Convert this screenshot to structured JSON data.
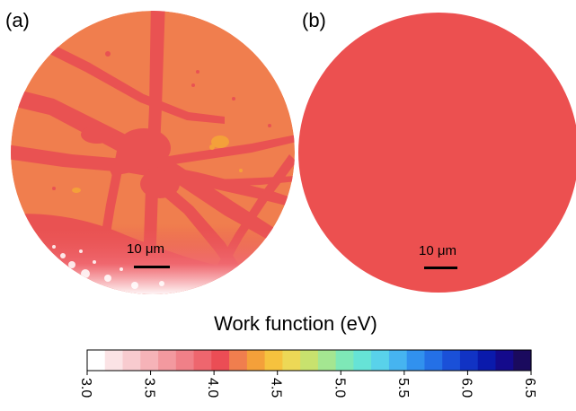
{
  "panels": [
    {
      "label": "(a)",
      "scale_bar": "10 μm",
      "base_color": "#F07E4E",
      "feature_color": "#E95252",
      "highlight_color": "#F4A03A"
    },
    {
      "label": "(b)",
      "scale_bar": "10 μm",
      "base_color": "#EC5050"
    }
  ],
  "colorbar": {
    "title": "Work function (eV)",
    "min": 3.0,
    "max": 6.5,
    "ticks": [
      "3.0",
      "3.5",
      "4.0",
      "4.5",
      "5.0",
      "5.5",
      "6.0",
      "6.5"
    ],
    "colors": [
      "#FFFFFF",
      "#FBE3E5",
      "#F8CBCF",
      "#F6B3B8",
      "#F3999F",
      "#F08088",
      "#EE666E",
      "#EB4D55",
      "#F07E4E",
      "#F4A03A",
      "#F6C23E",
      "#EDD856",
      "#C8E26E",
      "#A4E691",
      "#7EE8B7",
      "#66E3D6",
      "#59D2EA",
      "#46B4F0",
      "#3191EE",
      "#2470E6",
      "#1A50D8",
      "#1133C4",
      "#0A1AAC",
      "#140A8C",
      "#1A0A5E"
    ]
  }
}
